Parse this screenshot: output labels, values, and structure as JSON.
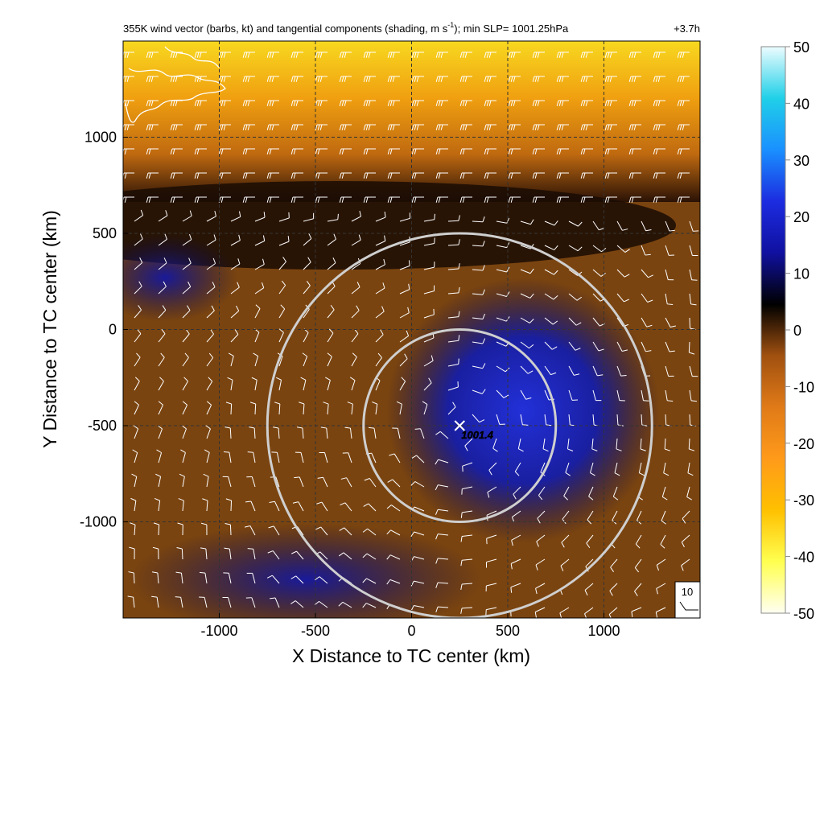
{
  "chart_data": {
    "type": "heatmap",
    "title": "355K wind vector (barbs, kt) and tangential components (shading, m s",
    "title_superscript": "-1",
    "title_suffix": "); min SLP= 1001.25hPa",
    "time_label": "+3.7h",
    "xlabel": "X Distance to TC center (km)",
    "ylabel": "Y Distance to TC center (km)",
    "xlim": [
      -1500,
      1500
    ],
    "ylim": [
      -1500,
      1500
    ],
    "x_ticks": [
      -1000,
      -500,
      0,
      500,
      1000
    ],
    "y_ticks": [
      1000,
      500,
      0,
      -500,
      -1000
    ],
    "x_tick_labels": [
      "-1000",
      "-500",
      "0",
      "500",
      "1000"
    ],
    "y_tick_labels": [
      "1000",
      "500",
      "0",
      "-500",
      "-1000"
    ],
    "grid": true,
    "colorbar": {
      "min": -50,
      "max": 50,
      "ticks": [
        50,
        40,
        30,
        20,
        10,
        0,
        -10,
        -20,
        -30,
        -40,
        -50
      ],
      "tick_labels": [
        "50",
        "40",
        "30",
        "20",
        "10",
        "0",
        "-10",
        "-20",
        "-30",
        "-40",
        "-50"
      ],
      "colors": [
        "#fffff2",
        "#ffff50",
        "#ffc000",
        "#ff9a1a",
        "#e07a18",
        "#a05010",
        "#000000",
        "#1010a0",
        "#1c2ce0",
        "#1a90ff",
        "#20d0e8",
        "#ecfcff"
      ]
    },
    "storm_center": {
      "x": 250,
      "y": -500,
      "label": "1001.4"
    },
    "radius_rings_km": [
      500,
      1000
    ],
    "barb_reference": {
      "label": "10"
    },
    "colors": {
      "ring": "#cfcfcf",
      "barb": "#ffffff",
      "coast": "#ffffff"
    }
  }
}
